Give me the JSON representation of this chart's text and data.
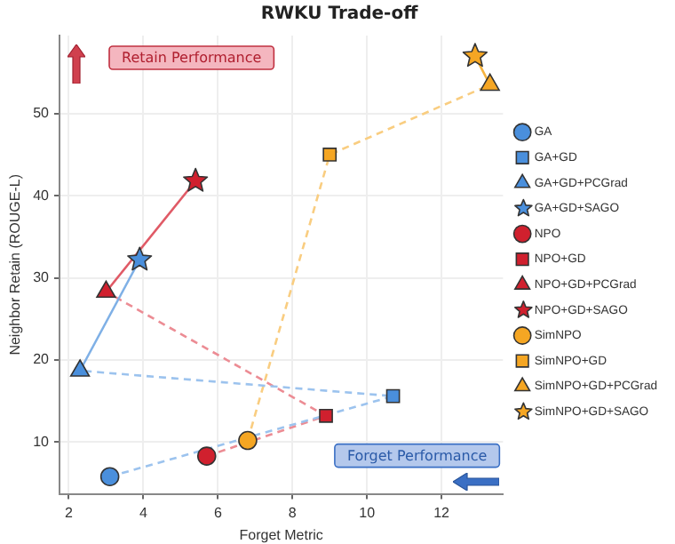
{
  "chart_data": {
    "type": "scatter",
    "title": "RWKU Trade-off",
    "xlabel": "Forget Metric",
    "ylabel": "Neighbor Retain (ROUGE-L)",
    "xlim": [
      1.75,
      13.65
    ],
    "xticks": [
      2,
      4,
      6,
      8,
      10,
      12
    ],
    "ylim": [
      3.7,
      59.5
    ],
    "yticks": [
      10,
      20,
      30,
      40,
      50
    ],
    "grid": true,
    "legend": "right",
    "annotations": [
      "Retain Performance",
      "Forget Performance"
    ],
    "series": [
      {
        "type": "line",
        "color": "#9cc3ee",
        "line_style": "dashed",
        "marker": "none",
        "x": [
          3.1,
          10.7,
          2.3
        ],
        "values": [
          5.8,
          15.6,
          18.7
        ]
      },
      {
        "type": "line",
        "color": "#7fb0e6",
        "line_style": "solid",
        "marker": "none",
        "x": [
          2.3,
          3.9
        ],
        "values": [
          18.7,
          32.2
        ]
      },
      {
        "type": "line",
        "color": "#ec8c94",
        "line_style": "dashed",
        "marker": "none",
        "x": [
          5.7,
          8.9,
          3.0
        ],
        "values": [
          8.3,
          13.2,
          28.3
        ]
      },
      {
        "type": "line",
        "color": "#e05a66",
        "line_style": "solid",
        "marker": "none",
        "x": [
          3.0,
          5.4
        ],
        "values": [
          28.3,
          41.8
        ]
      },
      {
        "type": "line",
        "color": "#f9cd80",
        "line_style": "dashed",
        "marker": "none",
        "x": [
          6.8,
          9.0,
          13.3
        ],
        "values": [
          10.2,
          45.0,
          53.5
        ]
      },
      {
        "type": "line",
        "color": "#f5b340",
        "line_style": "solid",
        "marker": "none",
        "x": [
          13.3,
          12.9
        ],
        "values": [
          53.5,
          57.0
        ]
      },
      {
        "name": "GA",
        "color": "#4a8fdc",
        "marker": "circle",
        "x": [
          3.1
        ],
        "values": [
          5.8
        ]
      },
      {
        "name": "GA+GD",
        "color": "#4a8fdc",
        "marker": "square",
        "x": [
          10.7
        ],
        "values": [
          15.6
        ]
      },
      {
        "name": "GA+GD+PCGrad",
        "color": "#4a8fdc",
        "marker": "triangle",
        "x": [
          2.3
        ],
        "values": [
          18.7
        ]
      },
      {
        "name": "GA+GD+SAGO",
        "color": "#4a8fdc",
        "marker": "star",
        "x": [
          3.9
        ],
        "values": [
          32.2
        ]
      },
      {
        "name": "NPO",
        "color": "#d0202e",
        "marker": "circle",
        "x": [
          5.7
        ],
        "values": [
          8.3
        ]
      },
      {
        "name": "NPO+GD",
        "color": "#d0202e",
        "marker": "square",
        "x": [
          8.9
        ],
        "values": [
          13.2
        ]
      },
      {
        "name": "NPO+GD+PCGrad",
        "color": "#d0202e",
        "marker": "triangle",
        "x": [
          3.0
        ],
        "values": [
          28.3
        ]
      },
      {
        "name": "NPO+GD+SAGO",
        "color": "#d0202e",
        "marker": "star",
        "x": [
          5.4
        ],
        "values": [
          41.8
        ]
      },
      {
        "name": "SimNPO",
        "color": "#f5a623",
        "marker": "circle",
        "x": [
          6.8
        ],
        "values": [
          10.2
        ]
      },
      {
        "name": "SimNPO+GD",
        "color": "#f5a623",
        "marker": "square",
        "x": [
          9.0
        ],
        "values": [
          45.0
        ]
      },
      {
        "name": "SimNPO+GD+PCGrad",
        "color": "#f5a623",
        "marker": "triangle",
        "x": [
          13.3
        ],
        "values": [
          53.5
        ]
      },
      {
        "name": "SimNPO+GD+SAGO",
        "color": "#f5a623",
        "marker": "star",
        "x": [
          12.9
        ],
        "values": [
          57.0
        ]
      }
    ]
  }
}
